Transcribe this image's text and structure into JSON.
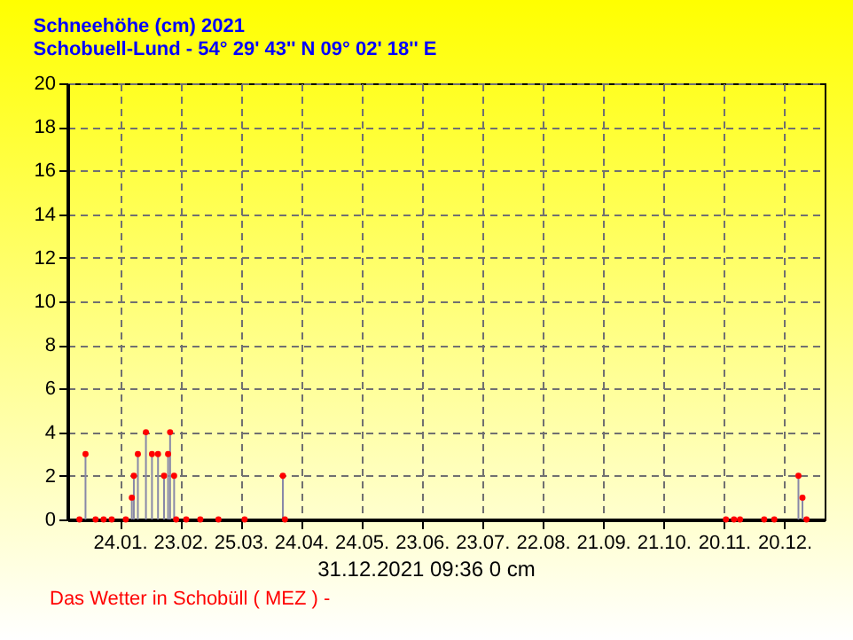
{
  "chart_data": {
    "type": "bar",
    "title": "Schneehöhe (cm)  2021",
    "subtitle": "Schobuell-Lund - 54° 29' 43''  N  09° 02' 18'' E",
    "annotations": [
      "31.12.2021  09:36   0 cm",
      "Das Wetter in Schobüll ( MEZ )  -"
    ],
    "x": [
      "2021-01-04",
      "2021-01-07",
      "2021-01-12",
      "2021-01-16",
      "2021-01-20",
      "2021-01-27",
      "2021-01-30",
      "2021-01-31",
      "2021-02-02",
      "2021-02-06",
      "2021-02-09",
      "2021-02-12",
      "2021-02-15",
      "2021-02-17",
      "2021-02-18",
      "2021-02-20",
      "2021-02-21",
      "2021-02-26",
      "2021-03-05",
      "2021-03-14",
      "2021-03-27",
      "2021-04-15",
      "2021-04-16",
      "2021-11-21",
      "2021-11-25",
      "2021-11-28",
      "2021-12-10",
      "2021-12-15",
      "2021-12-27",
      "2021-12-29",
      "2021-12-31"
    ],
    "series": [
      {
        "color": "#8888a8",
        "values": [
          0,
          3,
          0,
          0,
          0,
          0,
          1,
          2,
          3,
          4,
          3,
          3,
          2,
          3,
          4,
          2,
          0,
          0,
          0,
          0,
          0,
          2,
          0,
          0,
          0,
          0,
          0,
          0,
          2,
          1,
          0
        ]
      },
      {
        "type": "scatter",
        "color": "#ff0000",
        "values": [
          0,
          3,
          0,
          0,
          0,
          0,
          1,
          2,
          3,
          4,
          3,
          3,
          2,
          3,
          4,
          2,
          0,
          0,
          0,
          0,
          0,
          2,
          0,
          0,
          0,
          0,
          0,
          0,
          2,
          1,
          0
        ]
      }
    ],
    "xlim": [
      "2020-12-29",
      "2022-01-09"
    ],
    "xticks": [
      {
        "value": "2021-01-24",
        "label": "24.01."
      },
      {
        "value": "2021-02-23",
        "label": "23.02."
      },
      {
        "value": "2021-03-25",
        "label": "25.03."
      },
      {
        "value": "2021-04-24",
        "label": "24.04."
      },
      {
        "value": "2021-05-24",
        "label": "24.05."
      },
      {
        "value": "2021-06-23",
        "label": "23.06."
      },
      {
        "value": "2021-07-23",
        "label": "23.07."
      },
      {
        "value": "2021-08-22",
        "label": "22.08."
      },
      {
        "value": "2021-09-21",
        "label": "21.09."
      },
      {
        "value": "2021-10-21",
        "label": "21.10."
      },
      {
        "value": "2021-11-20",
        "label": "20.11."
      },
      {
        "value": "2021-12-20",
        "label": "20.12."
      }
    ],
    "ylim": [
      0,
      20
    ],
    "yticks": [
      0,
      2,
      4,
      6,
      8,
      10,
      12,
      14,
      16,
      18,
      20
    ],
    "grid": true,
    "marker": "circle"
  }
}
